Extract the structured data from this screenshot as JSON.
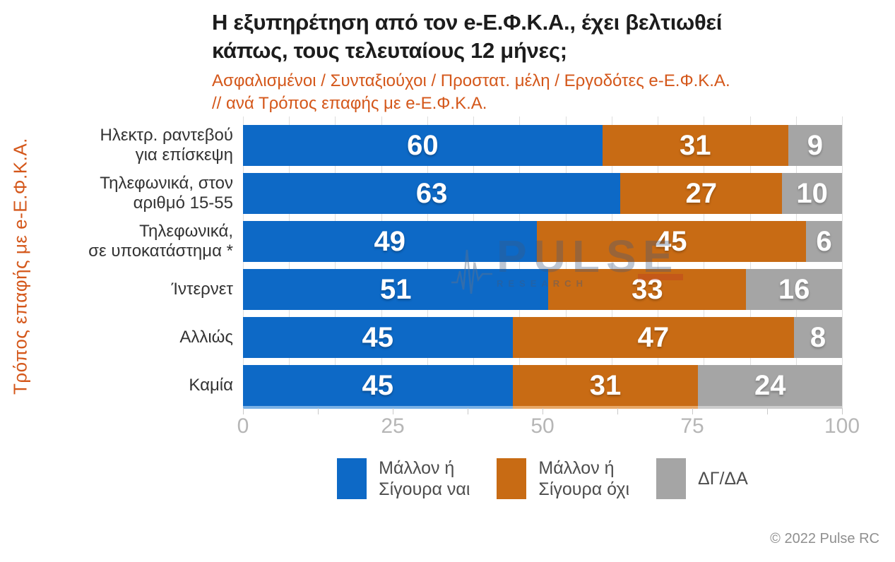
{
  "title": "Η εξυπηρέτηση από τον e-Ε.Φ.Κ.Α., έχει βελτιωθεί\nκάπως, τους τελευταίους 12 μήνες;",
  "subtitle": "Ασφαλισμένοι / Συνταξιούχοι / Προστατ. μέλη / Εργοδότες e-Ε.Φ.Κ.Α.\n // ανά Τρόπος επαφής με e-Ε.Φ.Κ.Α.",
  "y_axis_label": "Τρόπος επαφής με e-Ε.Φ.Κ.Α.",
  "copyright": "© 2022 Pulse RC",
  "watermark": {
    "text": "PULSE",
    "subtext": "RESEARCH"
  },
  "colors": {
    "yes_blue": "#0d69c6",
    "no_orange": "#c86b14",
    "dk_gray": "#a5a5a5",
    "accent_orange": "#d4571a",
    "edge_strip": [
      "#79b1e6",
      "#e8a868",
      "#cccccc"
    ]
  },
  "legend": {
    "items": [
      {
        "label": "Μάλλον ή\nΣίγουρα ναι",
        "color": "#0d69c6"
      },
      {
        "label": "Μάλλον ή\nΣίγουρα όχι",
        "color": "#c86b14"
      },
      {
        "label": "ΔΓ/ΔΑ",
        "color": "#a5a5a5"
      }
    ]
  },
  "chart_data": {
    "type": "bar",
    "orientation": "horizontal",
    "stacked": true,
    "title": "Η εξυπηρέτηση από τον e-Ε.Φ.Κ.Α., έχει βελτιωθεί κάπως, τους τελευταίους 12 μήνες;",
    "subtitle": "Ασφαλισμένοι / Συνταξιούχοι / Προστατ. μέλη / Εργοδότες e-Ε.Φ.Κ.Α. // ανά Τρόπος επαφής με e-Ε.Φ.Κ.Α.",
    "ylabel": "Τρόπος επαφής με e-Ε.Φ.Κ.Α.",
    "categories": [
      "Ηλεκτρ. ραντεβού\nγια επίσκεψη",
      "Τηλεφωνικά, στον\nαριθμό 15-55",
      "Τηλεφωνικά,\nσε υποκατάστημα *",
      "Ίντερνετ",
      "Αλλιώς",
      "Καμία"
    ],
    "series": [
      {
        "name": "Μάλλον ή Σίγουρα ναι",
        "color": "#0d69c6",
        "values": [
          60,
          63,
          49,
          51,
          45,
          45
        ]
      },
      {
        "name": "Μάλλον ή Σίγουρα όχι",
        "color": "#c86b14",
        "values": [
          31,
          27,
          45,
          33,
          47,
          31
        ]
      },
      {
        "name": "ΔΓ/ΔΑ",
        "color": "#a5a5a5",
        "values": [
          9,
          10,
          6,
          16,
          8,
          24
        ]
      }
    ],
    "x_ticks": [
      0,
      25,
      50,
      75,
      100
    ],
    "xlim": [
      0,
      100
    ],
    "grid_on": true,
    "grid_divisions": 13,
    "tick_mark_step": 12.5,
    "legend_position": "bottom"
  }
}
